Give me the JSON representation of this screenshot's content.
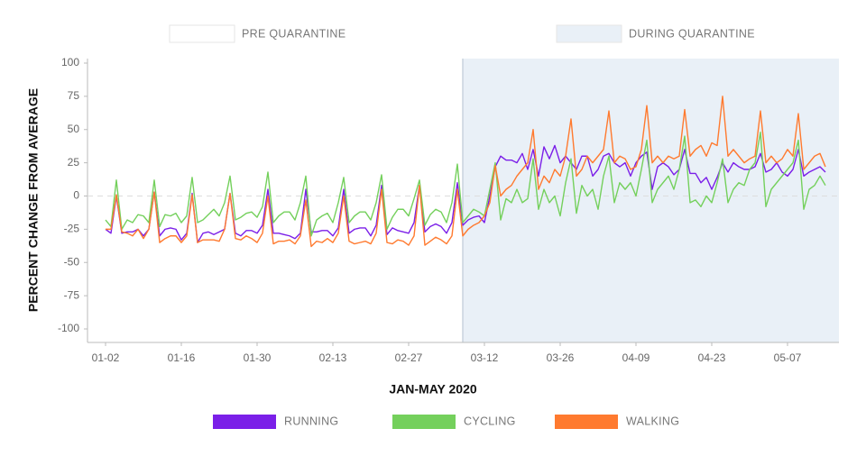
{
  "chart_data": {
    "type": "line",
    "xlabel": "JAN-MAY 2020",
    "ylabel": "PERCENT CHANGE FROM AVERAGE",
    "ylim": [
      -100,
      100
    ],
    "yticks": [
      -100,
      -75,
      -50,
      -25,
      0,
      25,
      50,
      75,
      100
    ],
    "grid": false,
    "zero_line": true,
    "regions": [
      {
        "label": "PRE QUARANTINE",
        "start": 0,
        "end": 66,
        "color": "#ffffff"
      },
      {
        "label": "DURING QUARANTINE",
        "start": 66,
        "end": 133,
        "color": "#e9f0f7"
      }
    ],
    "categories": [
      "01-02",
      null,
      null,
      null,
      null,
      null,
      null,
      null,
      null,
      null,
      null,
      null,
      null,
      null,
      "01-16",
      null,
      null,
      null,
      null,
      null,
      null,
      null,
      null,
      null,
      null,
      null,
      null,
      null,
      "01-30",
      null,
      null,
      null,
      null,
      null,
      null,
      null,
      null,
      null,
      null,
      null,
      null,
      null,
      "02-13",
      null,
      null,
      null,
      null,
      null,
      null,
      null,
      null,
      null,
      null,
      null,
      null,
      null,
      "02-27",
      null,
      null,
      null,
      null,
      null,
      null,
      null,
      null,
      null,
      null,
      null,
      null,
      null,
      "03-12",
      null,
      null,
      null,
      null,
      null,
      null,
      null,
      null,
      null,
      null,
      null,
      null,
      null,
      "03-26",
      null,
      null,
      null,
      null,
      null,
      null,
      null,
      null,
      null,
      null,
      null,
      null,
      null,
      "04-09",
      null,
      null,
      null,
      null,
      null,
      null,
      null,
      null,
      null,
      null,
      null,
      null,
      null,
      "04-23",
      null,
      null,
      null,
      null,
      null,
      null,
      null,
      null,
      null,
      null,
      null,
      null,
      null,
      "05-07",
      null,
      null,
      null,
      null,
      null,
      null,
      null
    ],
    "series": [
      {
        "name": "RUNNING",
        "color": "#7b1fe8",
        "values": [
          -25,
          -28,
          0,
          -28,
          -27,
          -27,
          -25,
          -30,
          -25,
          3,
          -30,
          -25,
          -24,
          -25,
          -33,
          -28,
          2,
          -35,
          -28,
          -27,
          -29,
          -27,
          -25,
          2,
          -28,
          -30,
          -26,
          -26,
          -28,
          -22,
          5,
          -28,
          -28,
          -29,
          -30,
          -32,
          -28,
          5,
          -27,
          -27,
          -26,
          -26,
          -30,
          -24,
          5,
          -28,
          -25,
          -24,
          -24,
          -30,
          -22,
          8,
          -29,
          -24,
          -26,
          -27,
          -28,
          -20,
          8,
          -27,
          -23,
          -21,
          -23,
          -28,
          -20,
          10,
          -22,
          -18,
          -16,
          -15,
          -20,
          0,
          22,
          30,
          27,
          27,
          25,
          32,
          20,
          35,
          15,
          37,
          28,
          38,
          25,
          30,
          25,
          20,
          30,
          30,
          15,
          20,
          30,
          32,
          25,
          22,
          25,
          15,
          25,
          30,
          33,
          5,
          22,
          25,
          22,
          16,
          20,
          35,
          17,
          17,
          10,
          14,
          5,
          14,
          25,
          18,
          25,
          22,
          20,
          20,
          22,
          32,
          18,
          20,
          25,
          18,
          15,
          20,
          35,
          15,
          18,
          20,
          22,
          18
        ]
      },
      {
        "name": "CYCLING",
        "color": "#74d05c",
        "values": [
          -18,
          -23,
          12,
          -25,
          -18,
          -20,
          -14,
          -15,
          -20,
          12,
          -23,
          -14,
          -15,
          -13,
          -20,
          -15,
          14,
          -20,
          -18,
          -14,
          -10,
          -15,
          -5,
          15,
          -18,
          -16,
          -13,
          -12,
          -16,
          -8,
          18,
          -20,
          -15,
          -12,
          -12,
          -18,
          -5,
          15,
          -30,
          -18,
          -15,
          -13,
          -20,
          -5,
          14,
          -20,
          -15,
          -12,
          -12,
          -18,
          -5,
          16,
          -25,
          -16,
          -10,
          -10,
          -15,
          -2,
          12,
          -22,
          -14,
          -10,
          -12,
          -20,
          -5,
          24,
          -20,
          -15,
          -10,
          -12,
          -15,
          5,
          25,
          -18,
          -2,
          -5,
          5,
          -5,
          -2,
          28,
          -10,
          5,
          -5,
          0,
          -15,
          10,
          28,
          -13,
          8,
          0,
          5,
          -10,
          15,
          30,
          -5,
          10,
          5,
          10,
          0,
          20,
          42,
          -5,
          5,
          10,
          15,
          5,
          20,
          45,
          -5,
          -3,
          -8,
          0,
          -5,
          10,
          28,
          -5,
          5,
          10,
          8,
          20,
          25,
          48,
          -8,
          5,
          10,
          15,
          20,
          25,
          42,
          -10,
          5,
          8,
          15,
          8
        ]
      },
      {
        "name": "WALKING",
        "color": "#ff7a2f",
        "values": [
          -25,
          -25,
          1,
          -27,
          -28,
          -30,
          -25,
          -32,
          -25,
          3,
          -35,
          -32,
          -30,
          -30,
          -35,
          -30,
          1,
          -35,
          -33,
          -33,
          -33,
          -34,
          -25,
          2,
          -32,
          -33,
          -30,
          -32,
          -35,
          -28,
          0,
          -36,
          -34,
          -34,
          -33,
          -36,
          -30,
          -3,
          -38,
          -34,
          -35,
          -32,
          -35,
          -28,
          0,
          -34,
          -36,
          -35,
          -34,
          -36,
          -28,
          5,
          -35,
          -36,
          -33,
          -34,
          -37,
          -30,
          8,
          -37,
          -34,
          -31,
          -33,
          -36,
          -30,
          5,
          -30,
          -25,
          -22,
          -20,
          -15,
          -5,
          23,
          0,
          5,
          8,
          15,
          20,
          25,
          50,
          5,
          15,
          10,
          20,
          15,
          30,
          58,
          15,
          20,
          30,
          25,
          30,
          35,
          64,
          25,
          30,
          28,
          20,
          22,
          35,
          68,
          25,
          30,
          25,
          30,
          28,
          30,
          65,
          30,
          35,
          38,
          30,
          40,
          38,
          75,
          30,
          35,
          30,
          25,
          28,
          30,
          64,
          25,
          30,
          25,
          28,
          35,
          30,
          62,
          20,
          25,
          30,
          32,
          22
        ]
      }
    ]
  }
}
